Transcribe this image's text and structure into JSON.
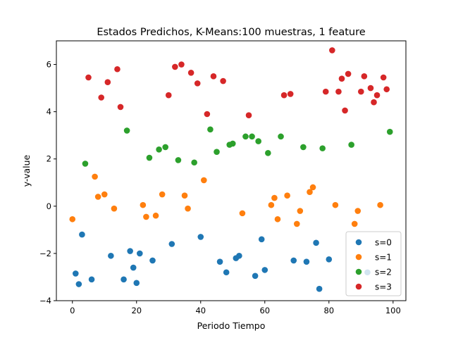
{
  "chart_data": {
    "type": "scatter",
    "title": "Estados Predichos, K-Means:100 muestras, 1 feature",
    "xlabel": "Periodo Tiempo",
    "ylabel": "y-value",
    "xlim": [
      -5,
      104
    ],
    "ylim": [
      -4,
      7
    ],
    "xticks": [
      0,
      20,
      40,
      60,
      80,
      100
    ],
    "yticks": [
      -4,
      -2,
      0,
      2,
      4,
      6
    ],
    "grid": false,
    "legend": "lower right",
    "series": [
      {
        "name": "s=0",
        "color": "#1f77b4",
        "points": [
          [
            1,
            -2.85
          ],
          [
            2,
            -3.3
          ],
          [
            3,
            -1.2
          ],
          [
            6,
            -3.1
          ],
          [
            12,
            -2.1
          ],
          [
            16,
            -3.1
          ],
          [
            18,
            -1.9
          ],
          [
            19,
            -2.6
          ],
          [
            20,
            -3.25
          ],
          [
            21,
            -2.0
          ],
          [
            25,
            -2.3
          ],
          [
            31,
            -1.6
          ],
          [
            40,
            -1.3
          ],
          [
            46,
            -2.35
          ],
          [
            48,
            -2.8
          ],
          [
            51,
            -2.2
          ],
          [
            52,
            -2.1
          ],
          [
            57,
            -2.95
          ],
          [
            59,
            -1.4
          ],
          [
            60,
            -2.7
          ],
          [
            69,
            -2.3
          ],
          [
            73,
            -2.35
          ],
          [
            76,
            -1.55
          ],
          [
            77,
            -3.5
          ],
          [
            80,
            -2.25
          ],
          [
            92,
            -2.8
          ]
        ]
      },
      {
        "name": "s=1",
        "color": "#ff7f0e",
        "points": [
          [
            0,
            -0.55
          ],
          [
            7,
            1.25
          ],
          [
            8,
            0.4
          ],
          [
            10,
            0.5
          ],
          [
            13,
            -0.1
          ],
          [
            22,
            0.05
          ],
          [
            23,
            -0.45
          ],
          [
            26,
            -0.4
          ],
          [
            28,
            0.5
          ],
          [
            35,
            0.45
          ],
          [
            36,
            -0.1
          ],
          [
            41,
            1.1
          ],
          [
            53,
            -0.3
          ],
          [
            62,
            0.05
          ],
          [
            63,
            0.35
          ],
          [
            64,
            -0.55
          ],
          [
            67,
            0.45
          ],
          [
            70,
            -0.75
          ],
          [
            71,
            -0.2
          ],
          [
            74,
            0.6
          ],
          [
            75,
            0.8
          ],
          [
            82,
            0.05
          ],
          [
            88,
            -0.75
          ],
          [
            89,
            -0.2
          ],
          [
            96,
            0.05
          ]
        ]
      },
      {
        "name": "s=2",
        "color": "#2ca02c",
        "points": [
          [
            4,
            1.8
          ],
          [
            17,
            3.2
          ],
          [
            24,
            2.05
          ],
          [
            27,
            2.4
          ],
          [
            29,
            2.5
          ],
          [
            33,
            1.95
          ],
          [
            38,
            1.85
          ],
          [
            43,
            3.25
          ],
          [
            45,
            2.3
          ],
          [
            49,
            2.6
          ],
          [
            50,
            2.65
          ],
          [
            54,
            2.95
          ],
          [
            56,
            2.95
          ],
          [
            58,
            2.75
          ],
          [
            61,
            2.25
          ],
          [
            65,
            2.95
          ],
          [
            72,
            2.5
          ],
          [
            78,
            2.45
          ],
          [
            87,
            2.6
          ],
          [
            99,
            3.15
          ]
        ]
      },
      {
        "name": "s=3",
        "color": "#d62728",
        "points": [
          [
            5,
            5.45
          ],
          [
            9,
            4.6
          ],
          [
            11,
            5.25
          ],
          [
            14,
            5.8
          ],
          [
            15,
            4.2
          ],
          [
            30,
            4.7
          ],
          [
            32,
            5.9
          ],
          [
            34,
            6.0
          ],
          [
            37,
            5.65
          ],
          [
            39,
            5.2
          ],
          [
            42,
            3.9
          ],
          [
            44,
            5.5
          ],
          [
            47,
            5.3
          ],
          [
            55,
            3.85
          ],
          [
            66,
            4.7
          ],
          [
            68,
            4.75
          ],
          [
            79,
            4.85
          ],
          [
            81,
            6.6
          ],
          [
            83,
            4.85
          ],
          [
            84,
            5.4
          ],
          [
            85,
            4.05
          ],
          [
            86,
            5.6
          ],
          [
            90,
            4.85
          ],
          [
            91,
            5.5
          ],
          [
            93,
            5.0
          ],
          [
            94,
            4.4
          ],
          [
            95,
            4.7
          ],
          [
            97,
            5.45
          ],
          [
            98,
            4.95
          ]
        ]
      }
    ]
  }
}
